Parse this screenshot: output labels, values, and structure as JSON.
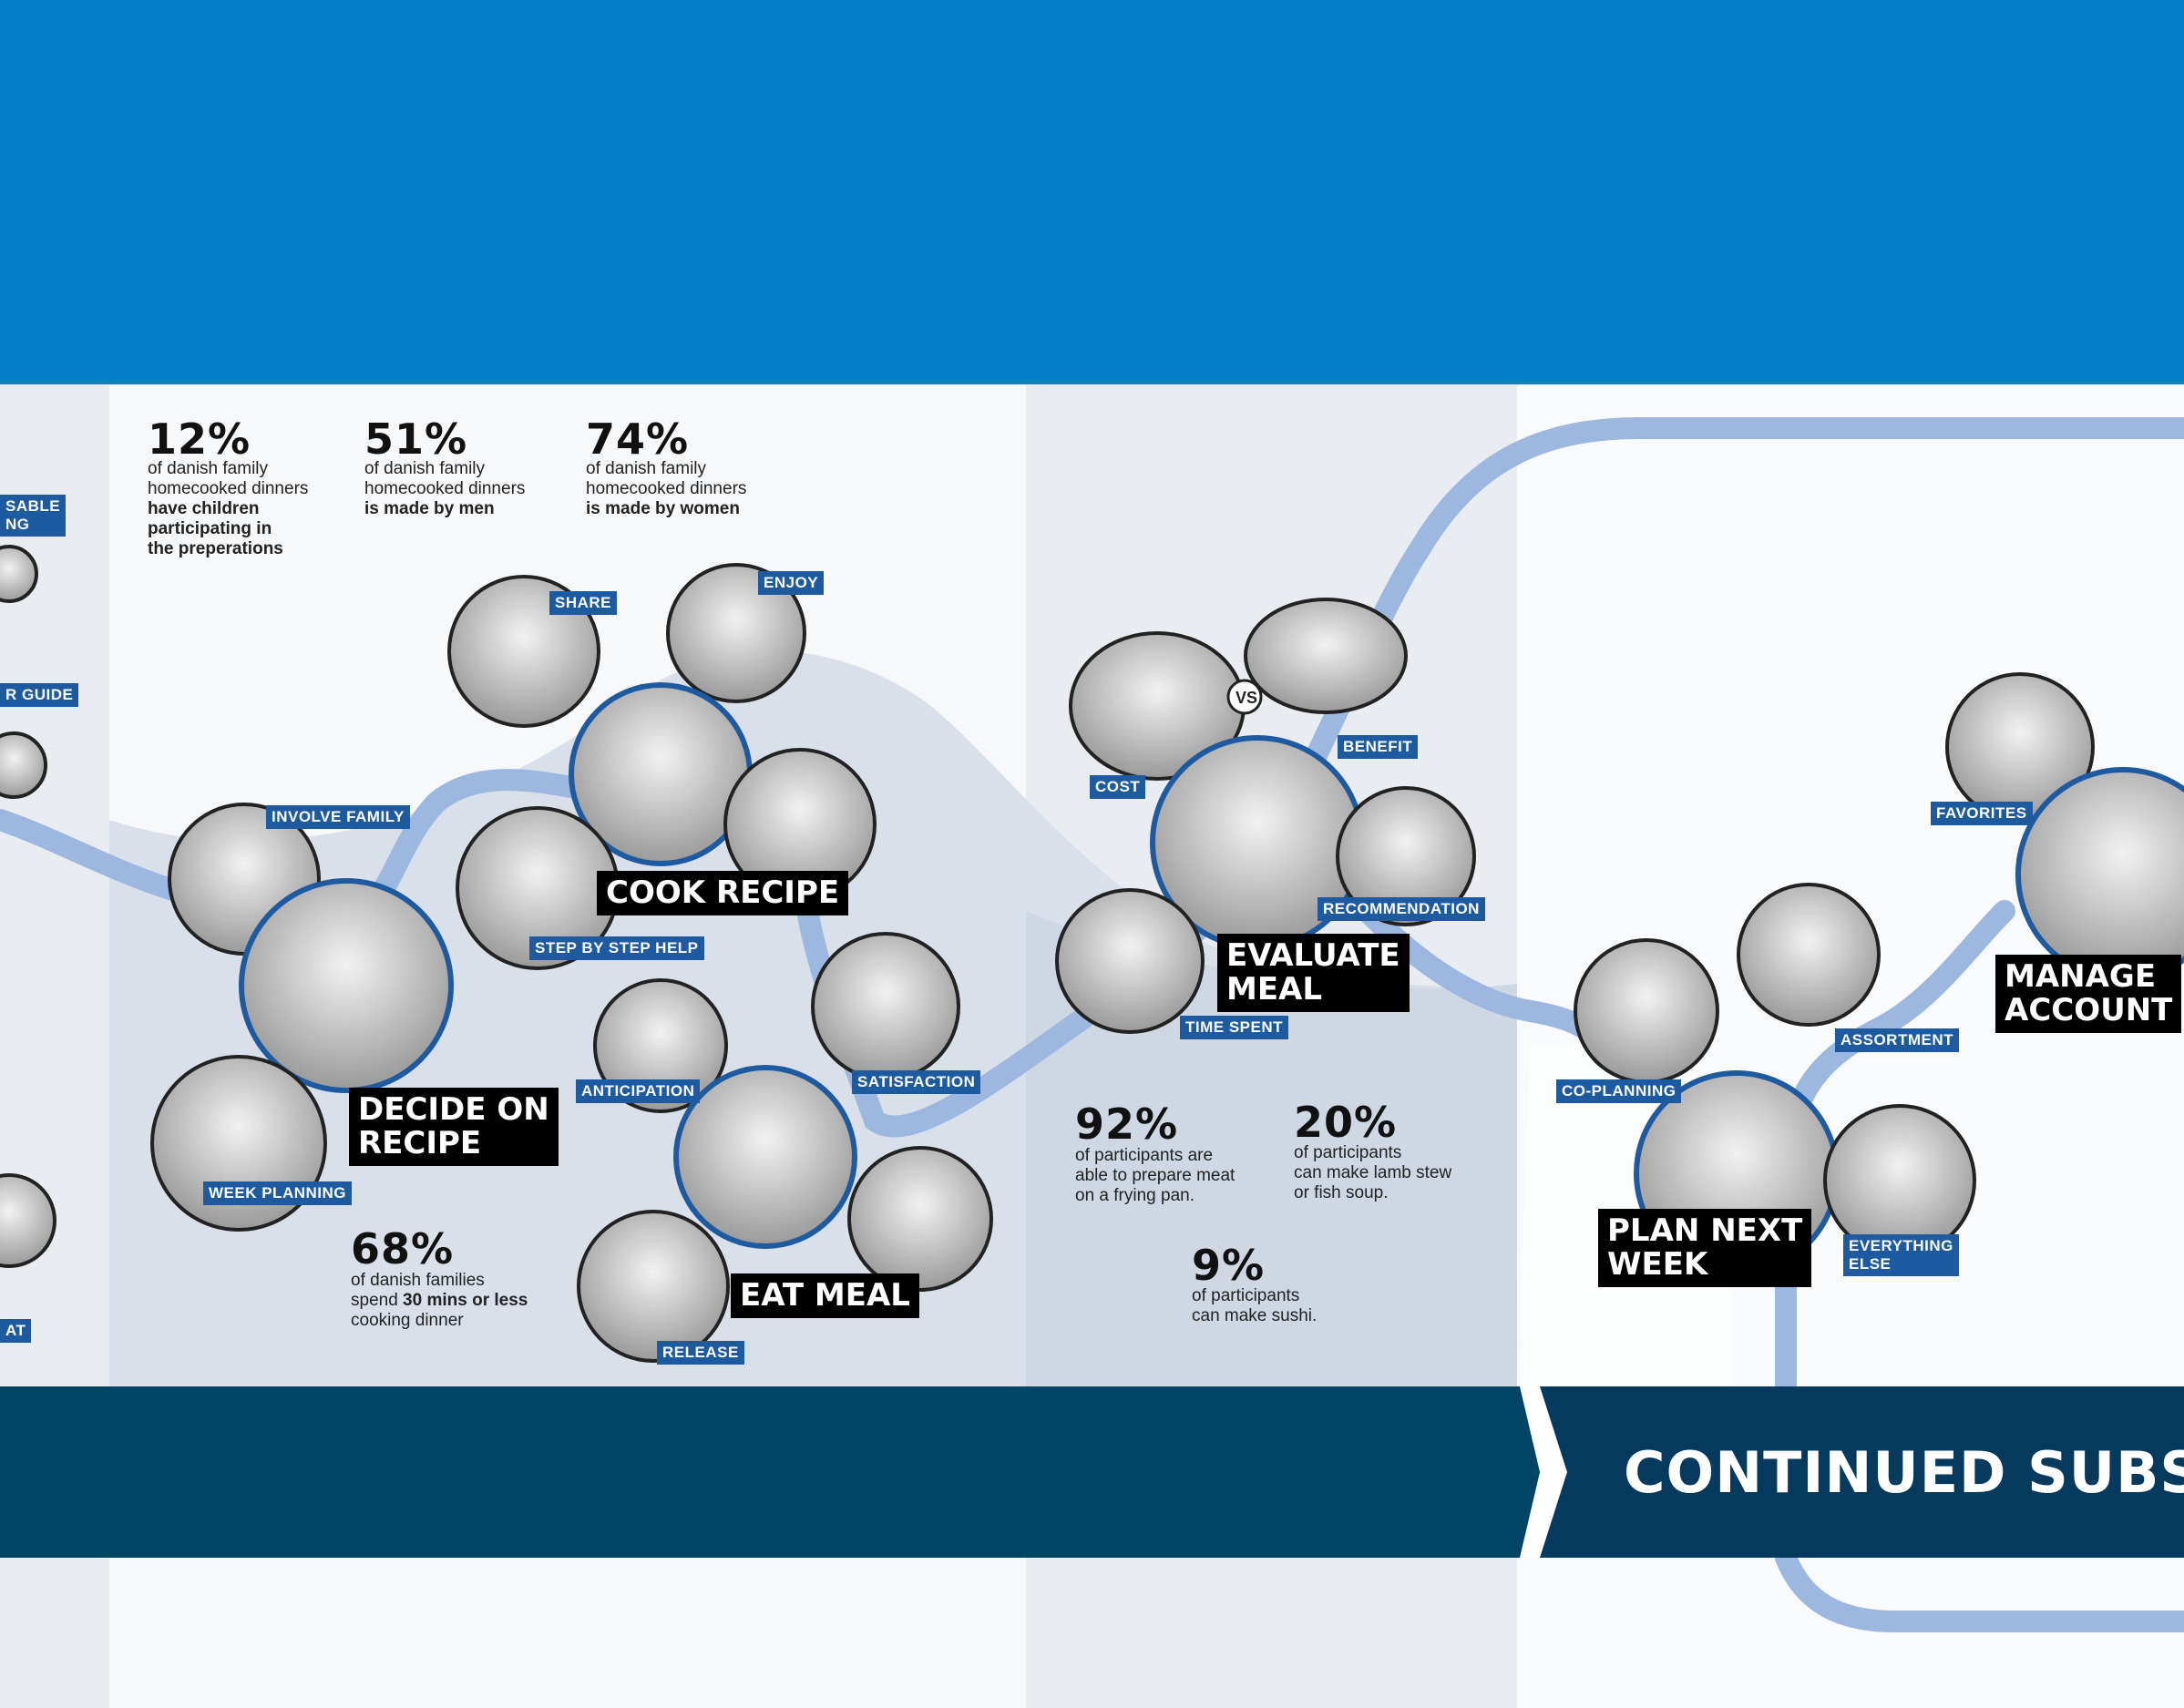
{
  "stats": {
    "s12": {
      "value": "12%",
      "line1": "of danish family",
      "line2": "homecooked dinners",
      "bold1": "have children",
      "bold2": "participating in",
      "bold3": "the preperations"
    },
    "s51": {
      "value": "51%",
      "line1": "of danish family",
      "line2": "homecooked dinners",
      "bold": "is made by men"
    },
    "s74": {
      "value": "74%",
      "line1": "of danish family",
      "line2": "homecooked dinners",
      "bold": "is made by women"
    },
    "s68": {
      "value": "68%",
      "line1": "of danish families",
      "pre": "spend ",
      "bold": "30 mins or less",
      "line3": "cooking dinner"
    },
    "s92": {
      "value": "92%",
      "text": "of participants are\nable to prepare meat\non a frying pan."
    },
    "s20": {
      "value": "20%",
      "text": "of participants\ncan make lamb stew\nor fish soup."
    },
    "s9": {
      "value": "9%",
      "text": "of participants\ncan make sushi."
    }
  },
  "tags": {
    "sable_ng": "SABLE\nNG",
    "r_guide": "R GUIDE",
    "at": "AT",
    "involve_family": "INVOLVE FAMILY",
    "week_planning": "WEEK PLANNING",
    "share": "SHARE",
    "enjoy": "ENJOY",
    "step_by_step": "STEP BY STEP HELP",
    "anticipation": "ANTICIPATION",
    "satisfaction": "SATISFACTION",
    "release": "RELEASE",
    "cost": "COST",
    "benefit": "BENEFIT",
    "recommendation": "RECOMMENDATION",
    "time_spent": "TIME SPENT",
    "co_planning": "CO-PLANNING",
    "assortment": "ASSORTMENT",
    "everything_else": "EVERYTHING\nELSE",
    "favorites": "FAVORITES"
  },
  "titles": {
    "decide_on_recipe": "DECIDE ON\nRECIPE",
    "cook_recipe": "COOK RECIPE",
    "eat_meal": "EAT MEAL",
    "evaluate_meal": "EVALUATE\nMEAL",
    "plan_next_week": "PLAN NEXT\nWEEK",
    "manage_account": "MANAGE\nACCOUNT"
  },
  "stage_label": "CONTINUED SUBSC",
  "colors": {
    "top_band": "#0281c8",
    "path": "#9db8e0",
    "tag": "#1e5aa0",
    "stage_bar": "#004466",
    "stage_arrow": "#053a5e",
    "column_gray": "#e9ecf1",
    "hill": "#cfd7e2"
  },
  "illustrations": [
    "sketch-illustration"
  ]
}
